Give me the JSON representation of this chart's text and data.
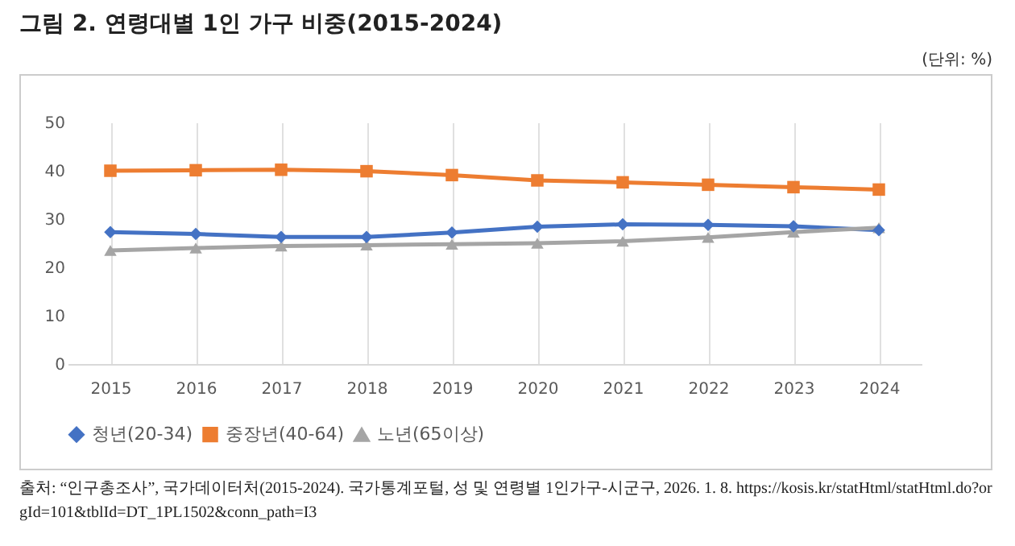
{
  "chart_data": {
    "type": "line",
    "title": "그림 2. 연령대별 1인 가구 비중(2015-2024)",
    "annotations": [
      "(단위: %)",
      "출처: “인구총조사”, 국가데이터처(2015-2024). 국가통계포털, 성 및 연령별 1인가구-시군구, 2026. 1. 8. https://kosis.kr/statHtml/statHtml.do?orgId=101&tblId=DT_1PL1502&conn_path=I3"
    ],
    "categories": [
      "2015",
      "2016",
      "2017",
      "2018",
      "2019",
      "2020",
      "2021",
      "2022",
      "2023",
      "2024"
    ],
    "series": [
      {
        "name": "청년(20-34)",
        "color": "#4472c4",
        "marker": "diamond",
        "values": [
          27.3,
          26.9,
          26.3,
          26.3,
          27.2,
          28.4,
          28.9,
          28.8,
          28.5,
          27.7
        ]
      },
      {
        "name": "중장년(40-64)",
        "color": "#ed7d31",
        "marker": "square",
        "values": [
          40.0,
          40.1,
          40.2,
          39.9,
          39.1,
          38.0,
          37.6,
          37.1,
          36.6,
          36.1
        ]
      },
      {
        "name": "노년(65이상)",
        "color": "#a5a5a5",
        "marker": "triangle",
        "values": [
          23.5,
          24.0,
          24.4,
          24.6,
          24.8,
          25.0,
          25.4,
          26.2,
          27.3,
          28.2
        ]
      }
    ],
    "ylim": [
      0,
      50
    ],
    "yticks": [
      0,
      10,
      20,
      30,
      40,
      50
    ],
    "grid": "x",
    "legend": "bottom"
  }
}
